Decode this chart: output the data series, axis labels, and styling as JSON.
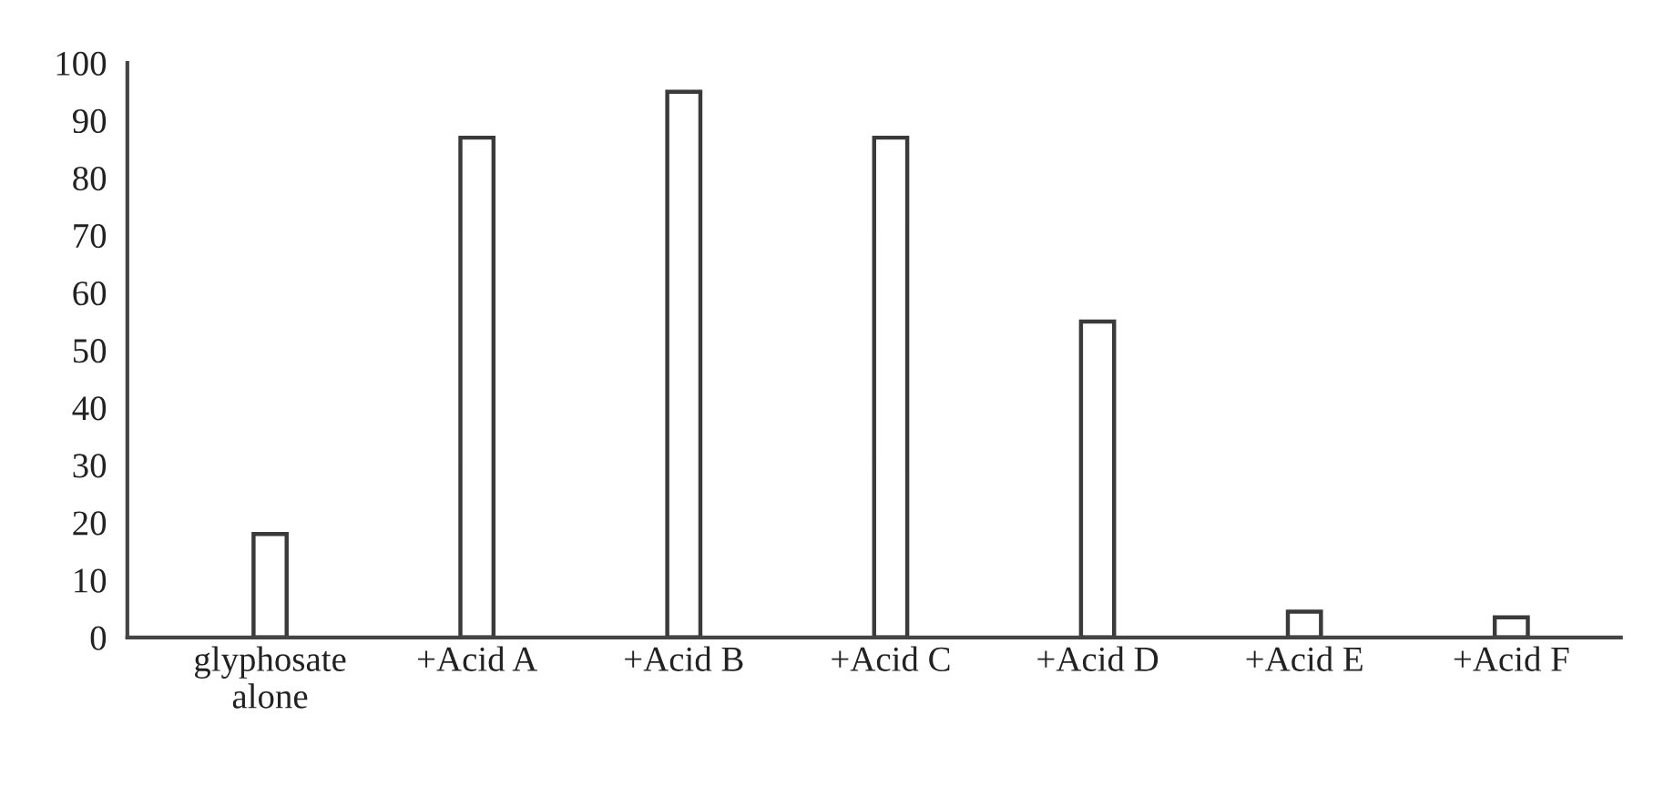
{
  "chart_data": {
    "type": "bar",
    "categories": [
      "glyphosate\nalone",
      "+Acid A",
      "+Acid B",
      "+Acid C",
      "+Acid D",
      "+Acid E",
      "+Acid F"
    ],
    "values": [
      18,
      87,
      95,
      87,
      55,
      4.5,
      3.5
    ],
    "color": "#ffffff",
    "ylim": [
      0,
      100
    ],
    "yticks": [
      0,
      10,
      20,
      30,
      40,
      50,
      60,
      70,
      80,
      90,
      100
    ],
    "grid": false,
    "legend": false
  }
}
